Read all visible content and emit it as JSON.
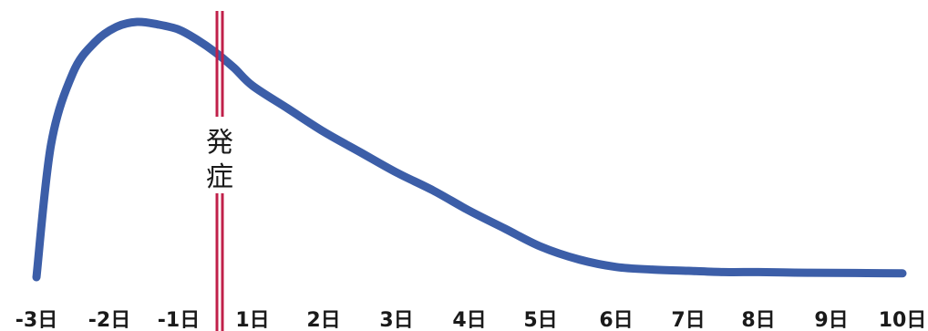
{
  "chart_data": {
    "type": "line",
    "title": "",
    "xlabel": "",
    "ylabel": "",
    "x_tick_labels": [
      "-3日",
      "-2日",
      "-1日",
      "1日",
      "2日",
      "3日",
      "4日",
      "5日",
      "6日",
      "7日",
      "8日",
      "9日",
      "10日"
    ],
    "series": [
      {
        "color": "#3c5ea8",
        "x": [
          -3,
          -2.8,
          -2.5,
          -2.2,
          -1.9,
          -1.6,
          -1.3,
          -1.0,
          -0.5,
          0,
          0.5,
          1,
          1.5,
          2,
          2.5,
          3,
          3.5,
          4,
          4.5,
          5,
          5.5,
          6,
          6.5,
          7,
          7.5,
          8,
          8.5,
          9,
          9.5,
          10
        ],
        "y": [
          0.0,
          0.52,
          0.8,
          0.92,
          0.98,
          1.0,
          0.99,
          0.97,
          0.93,
          0.88,
          0.82,
          0.75,
          0.66,
          0.57,
          0.49,
          0.41,
          0.34,
          0.26,
          0.19,
          0.12,
          0.07,
          0.04,
          0.03,
          0.025,
          0.02,
          0.02,
          0.018,
          0.017,
          0.016,
          0.015
        ]
      }
    ],
    "onset_marker": {
      "label": "発症",
      "label_chars": [
        "発",
        "症"
      ],
      "color": "#c0204a"
    },
    "grid": false,
    "legend": "none"
  }
}
